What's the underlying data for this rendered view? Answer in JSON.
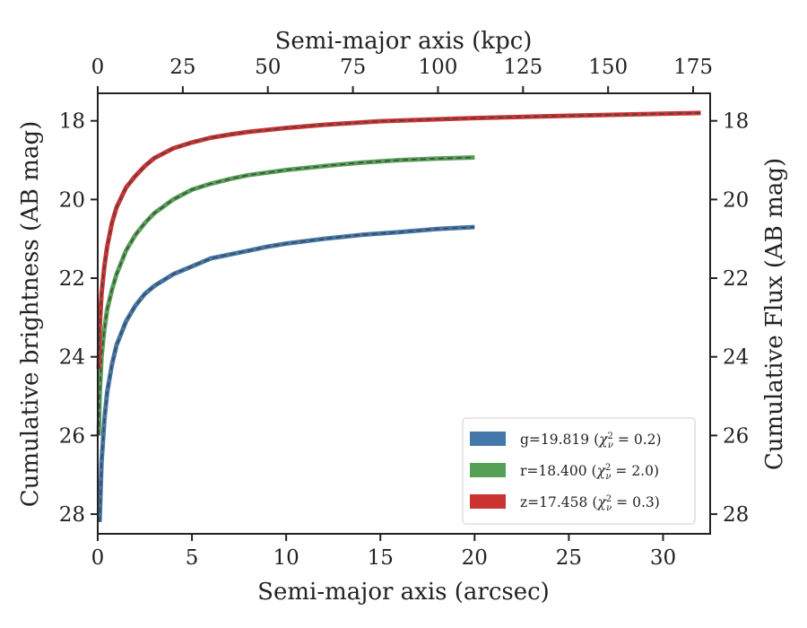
{
  "chart_data": {
    "type": "line",
    "x_axis": {
      "label": "Semi-major axis (arcsec)",
      "lim": [
        0,
        32.5
      ],
      "ticks": [
        0,
        5,
        10,
        15,
        20,
        25,
        30
      ],
      "tick_labels": [
        "0",
        "5",
        "10",
        "15",
        "20",
        "25",
        "30"
      ]
    },
    "x2_axis": {
      "label": "Semi-major axis (kpc)",
      "lim": [
        0,
        180
      ],
      "ticks": [
        0,
        25,
        50,
        75,
        100,
        125,
        150,
        175
      ],
      "tick_labels": [
        "0",
        "25",
        "50",
        "75",
        "100",
        "125",
        "150",
        "175"
      ]
    },
    "y_axis": {
      "label": "Cumulative brightness (AB mag)",
      "lim": [
        28.5,
        17.3
      ],
      "inverted": true,
      "ticks": [
        18,
        20,
        22,
        24,
        26,
        28
      ],
      "tick_labels": [
        "18",
        "20",
        "22",
        "24",
        "26",
        "28"
      ]
    },
    "y2_axis": {
      "label": "Cumulative Flux (AB mag)",
      "ticks": [
        18,
        20,
        22,
        24,
        26,
        28
      ],
      "tick_labels": [
        "18",
        "20",
        "22",
        "24",
        "26",
        "28"
      ]
    },
    "legend_position": "lower-right",
    "grid": false,
    "series": [
      {
        "name": "g=19.819 (χ²ν = 0.2)",
        "label_prefix": "g=19.819",
        "chi2": "0.2",
        "color": "#4477aa",
        "model_color": "#444444",
        "x": [
          0.1,
          0.2,
          0.35,
          0.5,
          0.75,
          1.0,
          1.5,
          2.0,
          2.5,
          3.0,
          4.0,
          5.0,
          6.0,
          7.0,
          8.0,
          9.0,
          10.0,
          12.0,
          14.0,
          16.0,
          18.0,
          20.0
        ],
        "y": [
          28.2,
          26.7,
          25.6,
          24.9,
          24.2,
          23.7,
          23.1,
          22.7,
          22.4,
          22.2,
          21.9,
          21.7,
          21.5,
          21.4,
          21.3,
          21.2,
          21.12,
          21.0,
          20.9,
          20.83,
          20.75,
          20.7
        ]
      },
      {
        "name": "r=18.400 (χ²ν = 2.0)",
        "label_prefix": "r=18.400",
        "chi2": "2.0",
        "color": "#56a056",
        "model_color": "#444444",
        "x": [
          0.05,
          0.1,
          0.2,
          0.35,
          0.5,
          0.75,
          1.0,
          1.5,
          2.0,
          2.5,
          3.0,
          4.0,
          5.0,
          6.0,
          7.0,
          8.0,
          10.0,
          12.0,
          14.0,
          16.0,
          18.0,
          20.0
        ],
        "y": [
          26.0,
          25.0,
          24.0,
          23.3,
          22.8,
          22.3,
          21.9,
          21.3,
          20.9,
          20.6,
          20.35,
          20.0,
          19.75,
          19.6,
          19.48,
          19.38,
          19.25,
          19.15,
          19.06,
          19.0,
          18.96,
          18.93
        ]
      },
      {
        "name": "z=17.458 (χ²ν = 0.3)",
        "label_prefix": "z=17.458",
        "chi2": "0.3",
        "color": "#cc3333",
        "model_color": "#444444",
        "x": [
          0.05,
          0.1,
          0.2,
          0.35,
          0.5,
          0.75,
          1.0,
          1.5,
          2.0,
          2.5,
          3.0,
          4.0,
          5.0,
          6.0,
          7.0,
          8.0,
          10.0,
          12.0,
          15.0,
          20.0,
          25.0,
          30.0,
          32.0
        ],
        "y": [
          24.3,
          23.3,
          22.4,
          21.7,
          21.2,
          20.6,
          20.2,
          19.7,
          19.4,
          19.15,
          18.95,
          18.7,
          18.55,
          18.43,
          18.35,
          18.28,
          18.18,
          18.1,
          18.01,
          17.93,
          17.87,
          17.82,
          17.8
        ]
      }
    ]
  }
}
